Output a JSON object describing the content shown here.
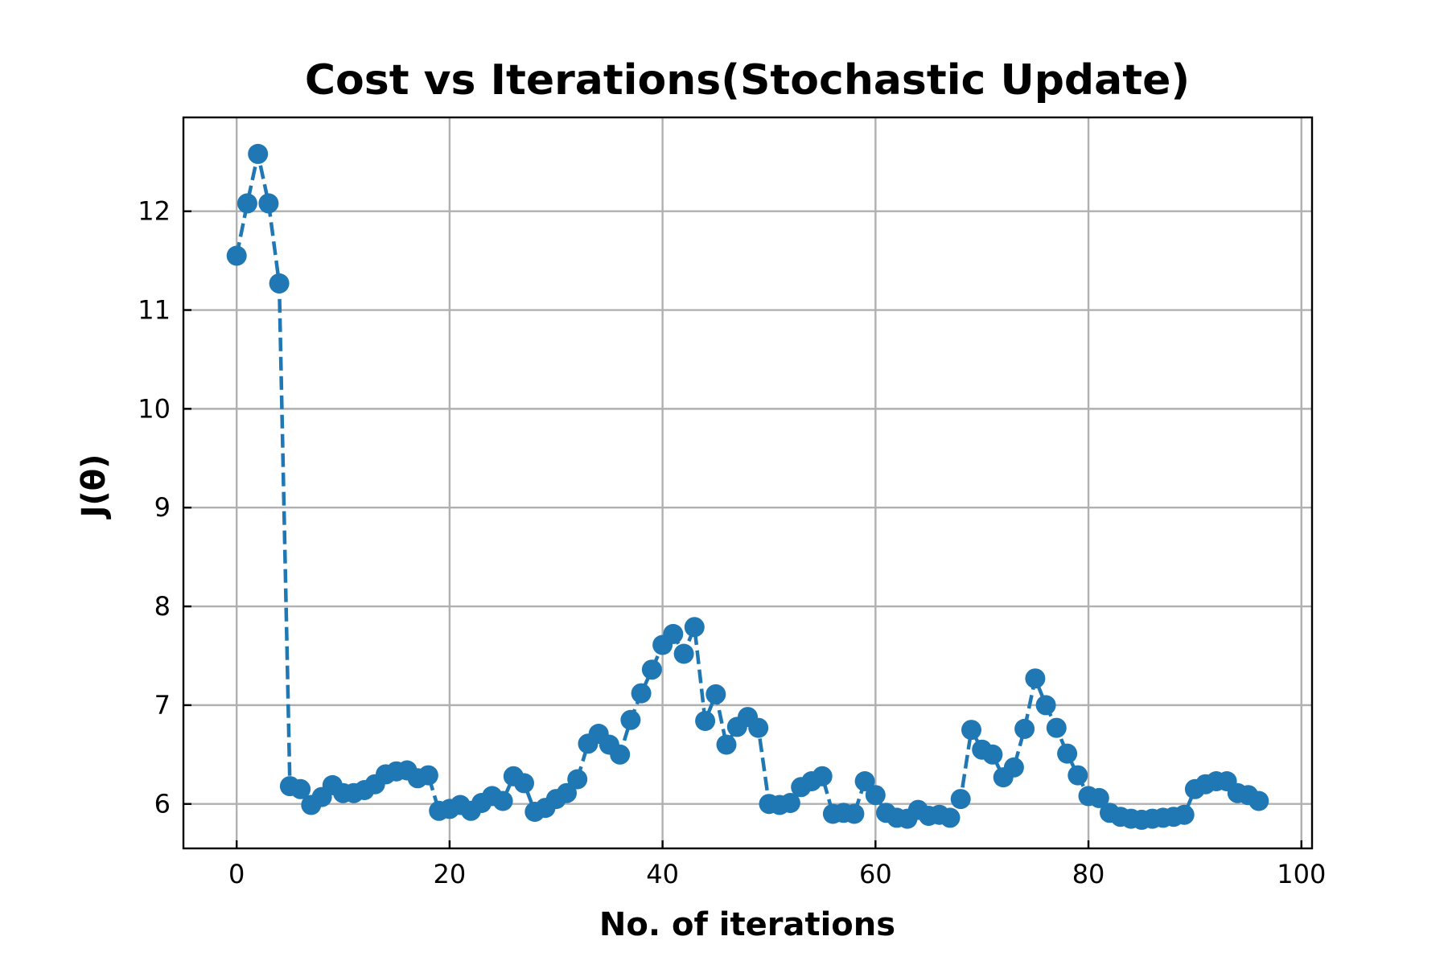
{
  "chart_data": {
    "type": "line",
    "title": "Cost vs Iterations(Stochastic Update)",
    "xlabel": "No. of iterations",
    "ylabel": "J(θ)",
    "xlim": [
      -5,
      101
    ],
    "ylim": [
      5.55,
      12.95
    ],
    "xticks": [
      0,
      20,
      40,
      60,
      80,
      100
    ],
    "yticks": [
      6,
      7,
      8,
      9,
      10,
      11,
      12
    ],
    "grid": true,
    "line_style": "dashed",
    "marker": "circle",
    "color": "#1f77b4",
    "grid_color": "#b0b0b0",
    "series": [
      {
        "x": [
          0,
          1,
          2,
          3,
          4,
          5,
          6,
          7,
          8,
          9,
          10,
          11,
          12,
          13,
          14,
          15,
          16,
          17,
          18,
          19,
          20,
          21,
          22,
          23,
          24,
          25,
          26,
          27,
          28,
          29,
          30,
          31,
          32,
          33,
          34,
          35,
          36,
          37,
          38,
          39,
          40,
          41,
          42,
          43,
          44,
          45,
          46,
          47,
          48,
          49,
          50,
          51,
          52,
          53,
          54,
          55,
          56,
          57,
          58,
          59,
          60,
          61,
          62,
          63,
          64,
          65,
          66,
          67,
          68,
          69,
          70,
          71,
          72,
          73,
          74,
          75,
          76,
          77,
          78,
          79,
          80,
          81,
          82,
          83,
          84,
          85,
          86,
          87,
          88,
          89,
          90,
          91,
          92,
          93,
          94,
          95,
          96
        ],
        "values": [
          11.55,
          12.08,
          12.58,
          12.08,
          11.27,
          6.18,
          6.15,
          5.99,
          6.07,
          6.19,
          6.11,
          6.11,
          6.14,
          6.2,
          6.3,
          6.33,
          6.34,
          6.26,
          6.29,
          5.93,
          5.95,
          5.99,
          5.93,
          6.01,
          6.08,
          6.03,
          6.28,
          6.21,
          5.92,
          5.96,
          6.05,
          6.11,
          6.25,
          6.61,
          6.71,
          6.6,
          6.5,
          6.85,
          7.12,
          7.36,
          7.61,
          7.72,
          7.52,
          7.79,
          6.84,
          7.11,
          6.6,
          6.78,
          6.88,
          6.77,
          6.0,
          5.99,
          6.01,
          6.17,
          6.23,
          6.28,
          5.9,
          5.91,
          5.9,
          6.23,
          6.09,
          5.91,
          5.86,
          5.85,
          5.94,
          5.88,
          5.89,
          5.86,
          6.05,
          6.75,
          6.55,
          6.5,
          6.27,
          6.37,
          6.76,
          7.27,
          7.0,
          6.77,
          6.51,
          6.29,
          6.08,
          6.06,
          5.91,
          5.87,
          5.85,
          5.84,
          5.85,
          5.86,
          5.87,
          5.89,
          6.15,
          6.2,
          6.23,
          6.23,
          6.11,
          6.09,
          6.03
        ]
      }
    ]
  }
}
